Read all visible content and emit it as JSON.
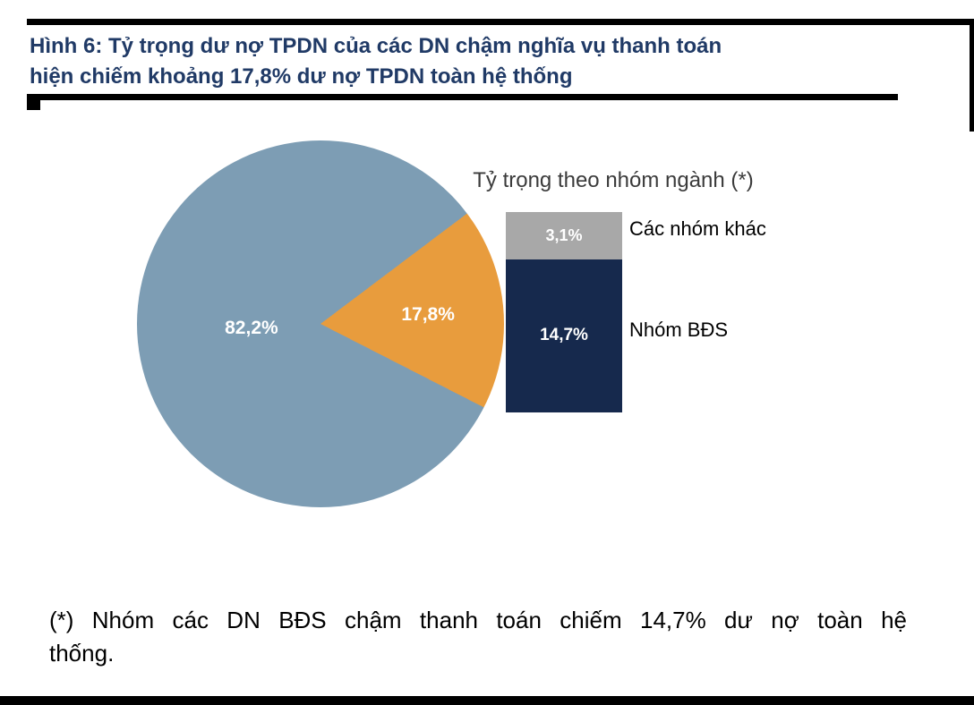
{
  "title": {
    "line1": "Hình 6: Tỷ trọng dư nợ TPDN của các DN chậm nghĩa vụ thanh toán",
    "line2": "hiện chiếm khoảng 17,8% dư nợ TPDN toàn hệ thống"
  },
  "colors": {
    "title_navy": "#203A66",
    "pie_majority": "#7D9DB4",
    "pie_minority": "#E89C3D",
    "bar_other_gray": "#A8A8A8",
    "bar_bds_navy": "#16294D",
    "rule_black": "#000000"
  },
  "chart_data": [
    {
      "type": "pie",
      "rotation_deg": 53,
      "slices": [
        {
          "display": "82,2%",
          "value": 82.2,
          "color": "#7D9DB4"
        },
        {
          "display": "17,8%",
          "value": 17.8,
          "color": "#E89C3D"
        }
      ]
    },
    {
      "type": "bar",
      "stacked": true,
      "title": "Tỷ trọng theo nhóm ngành (*)",
      "total": 17.8,
      "ylim": [
        0,
        17.8
      ],
      "segments": [
        {
          "label": "Các nhóm khác",
          "display": "3,1%",
          "value": 3.1,
          "color": "#A8A8A8"
        },
        {
          "label": "Nhóm BĐS",
          "display": "14,7%",
          "value": 14.7,
          "color": "#16294D"
        }
      ]
    }
  ],
  "footnote": {
    "line1": "(*) Nhóm các DN BĐS chậm thanh toán chiếm 14,7% dư nợ toàn hệ",
    "line2": "thống."
  }
}
